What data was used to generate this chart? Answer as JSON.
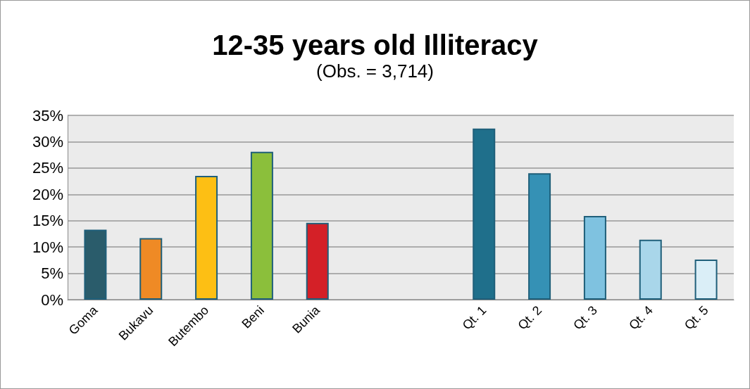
{
  "chart_data": {
    "type": "bar",
    "title": "12-35 years old Illiteracy",
    "subtitle": "(Obs. = 3,714)",
    "categories": [
      "Goma",
      "Bukavu",
      "Butembo",
      "Beni",
      "Bunia",
      null,
      null,
      "Qt. 1",
      "Qt. 2",
      "Qt. 3",
      "Qt. 4",
      "Qt. 5"
    ],
    "values": [
      13.3,
      11.7,
      23.5,
      28.1,
      14.6,
      null,
      null,
      32.5,
      24.0,
      15.9,
      11.4,
      7.6
    ],
    "colors": [
      "#2a5c6b",
      "#ef8a25",
      "#fdbf14",
      "#8bbf3b",
      "#d42027",
      null,
      null,
      "#1f6f8b",
      "#3591b5",
      "#7fc2e0",
      "#a9d6ea",
      "#daeef7"
    ],
    "ylim": [
      0,
      35
    ],
    "yticks": [
      {
        "value": 0,
        "label": "0%"
      },
      {
        "value": 5,
        "label": "5%"
      },
      {
        "value": 10,
        "label": "10%"
      },
      {
        "value": 15,
        "label": "15%"
      },
      {
        "value": 20,
        "label": "20%"
      },
      {
        "value": 25,
        "label": "25%"
      },
      {
        "value": 30,
        "label": "30%"
      },
      {
        "value": 35,
        "label": "35%"
      }
    ],
    "grid": "y"
  }
}
